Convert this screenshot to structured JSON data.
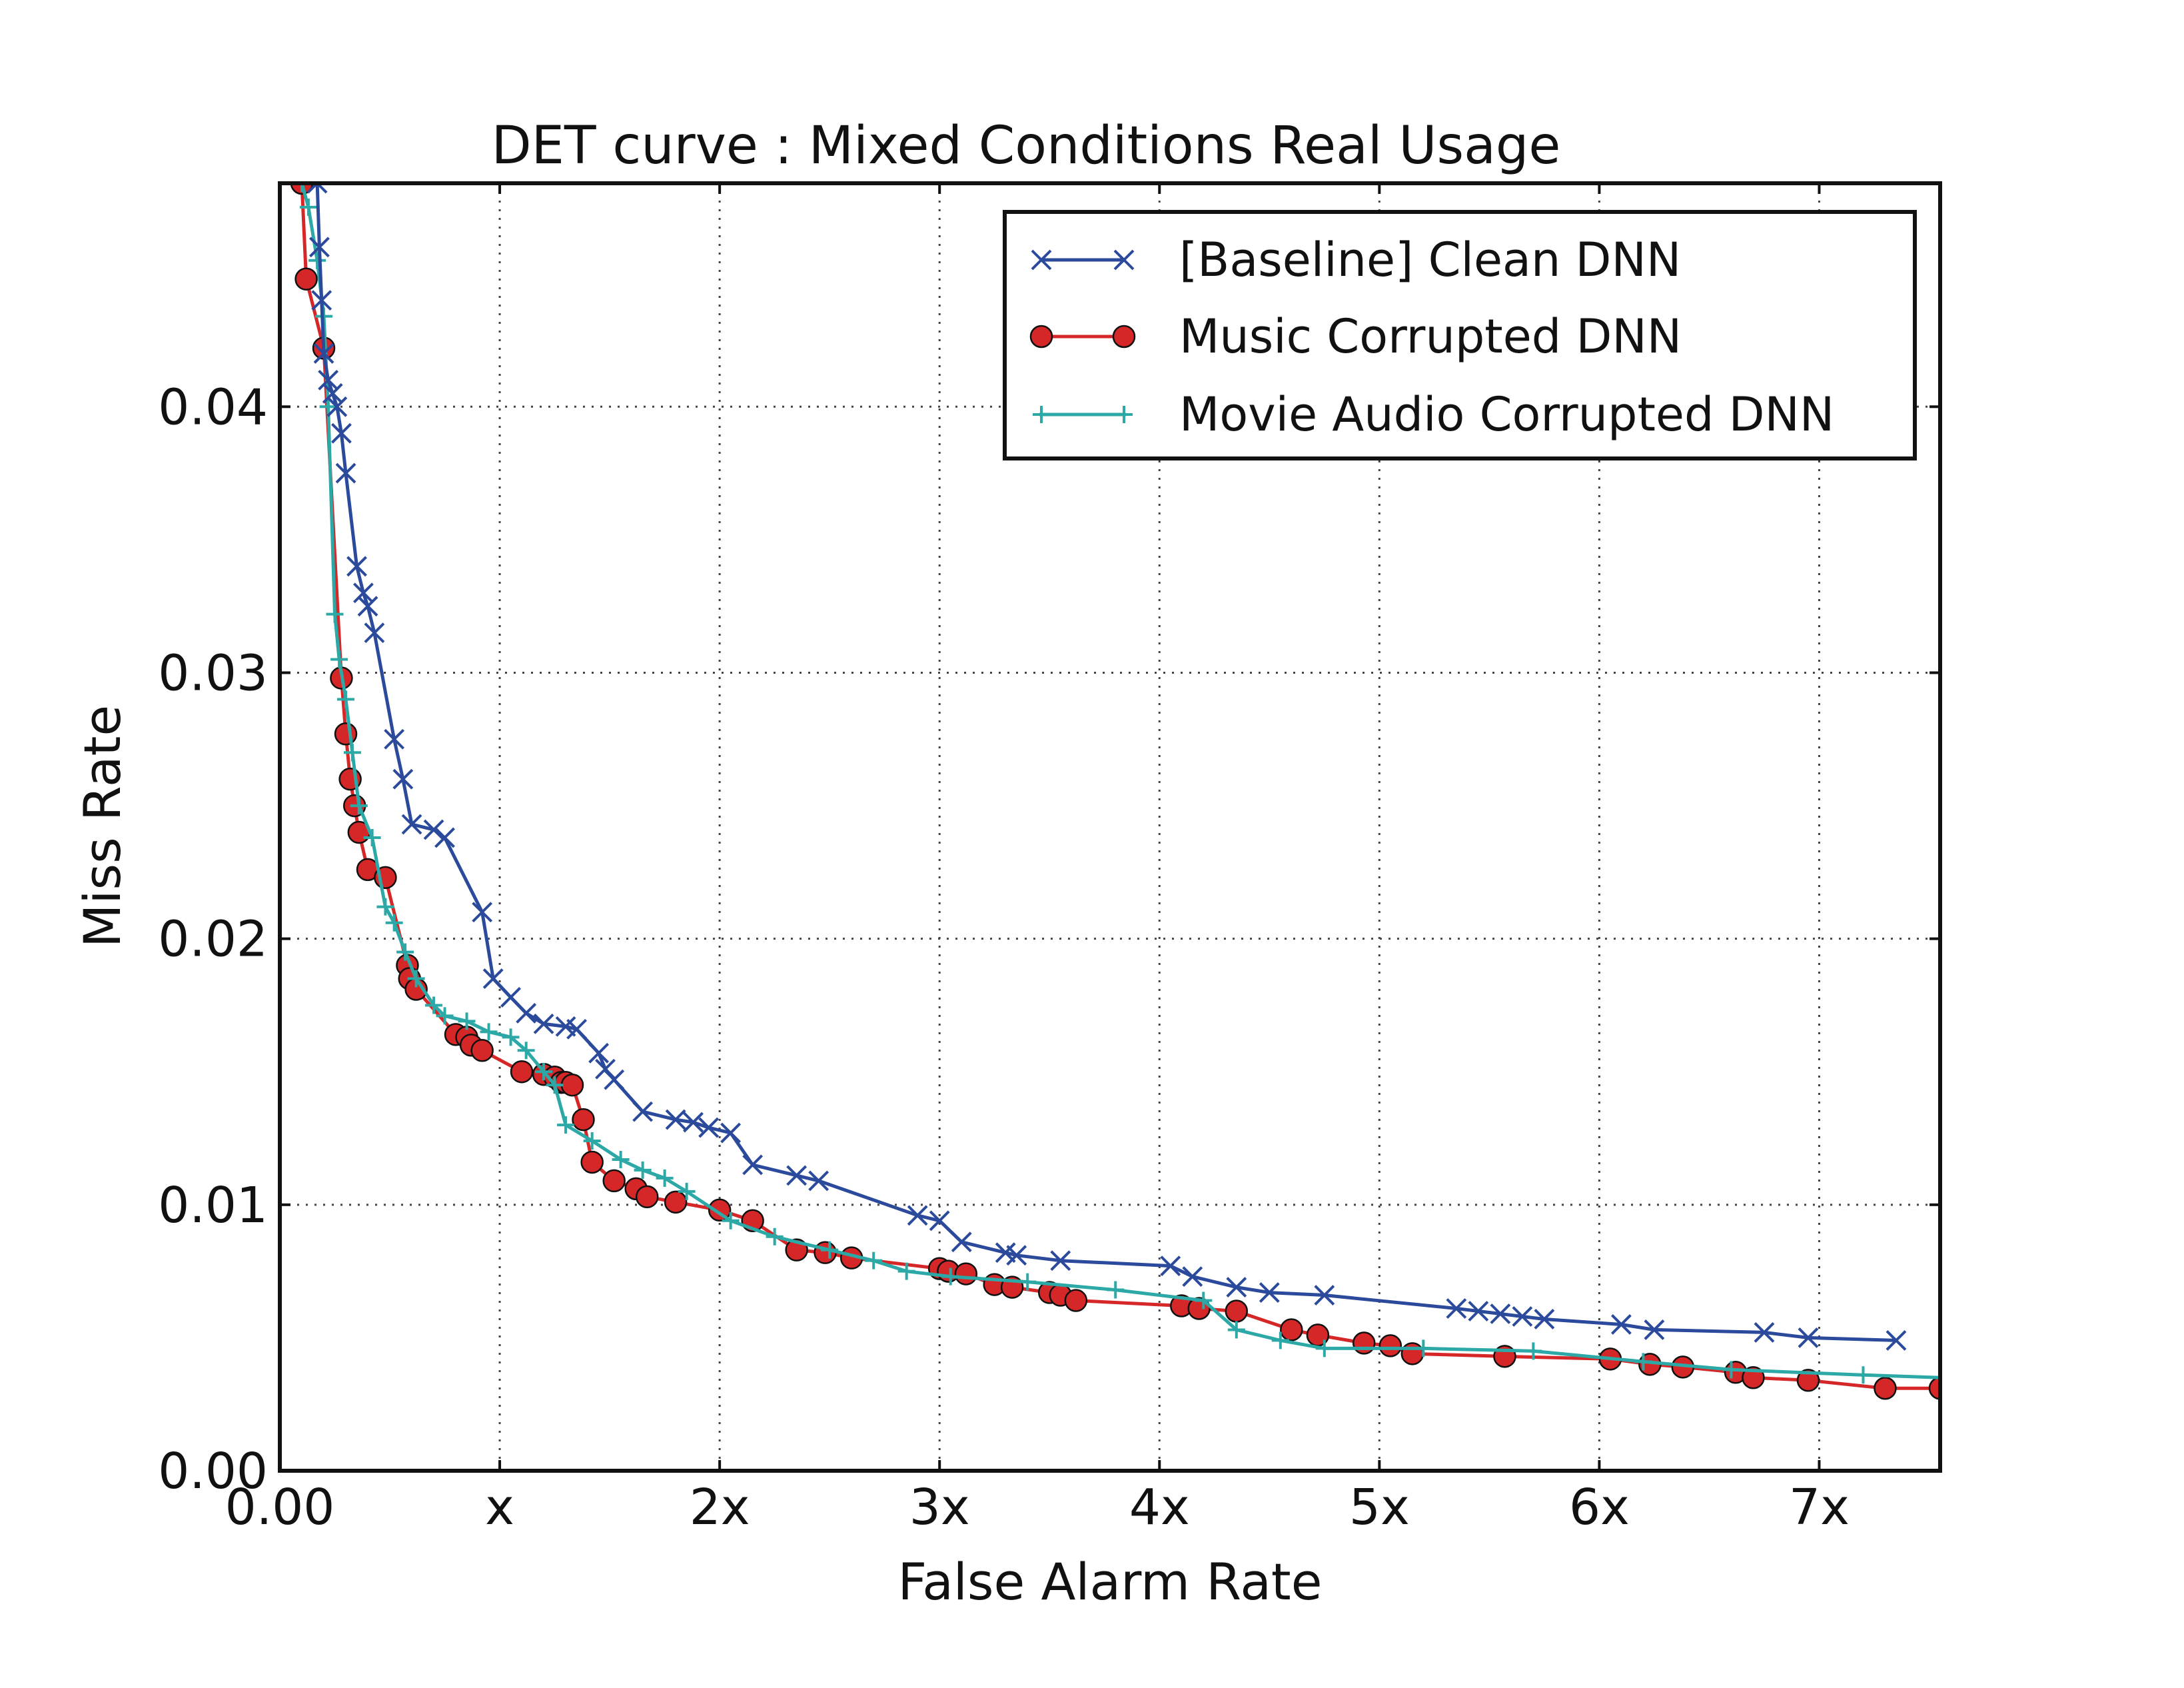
{
  "chart_data": {
    "type": "line",
    "title": "DET curve :  Mixed  Conditions  Real  Usage",
    "xlabel": "False Alarm Rate",
    "ylabel": "Miss Rate",
    "xlim": [
      0,
      7.55
    ],
    "ylim": [
      0,
      0.0484
    ],
    "x_ticks": [
      {
        "value": 0,
        "label": "0.00"
      },
      {
        "value": 1,
        "label": "x"
      },
      {
        "value": 2,
        "label": "2x"
      },
      {
        "value": 3,
        "label": "3x"
      },
      {
        "value": 4,
        "label": "4x"
      },
      {
        "value": 5,
        "label": "5x"
      },
      {
        "value": 6,
        "label": "6x"
      },
      {
        "value": 7,
        "label": "7x"
      }
    ],
    "y_ticks": [
      {
        "value": 0,
        "label": "0.00"
      },
      {
        "value": 0.01,
        "label": "0.01"
      },
      {
        "value": 0.02,
        "label": "0.02"
      },
      {
        "value": 0.03,
        "label": "0.03"
      },
      {
        "value": 0.04,
        "label": "0.04"
      }
    ],
    "grid": true,
    "legend_position": "top-right",
    "series": [
      {
        "name": "[Baseline]  Clean  DNN",
        "color": "#2b4a9c",
        "marker": "x",
        "x": [
          0.17,
          0.18,
          0.19,
          0.2,
          0.22,
          0.24,
          0.26,
          0.28,
          0.3,
          0.35,
          0.38,
          0.4,
          0.43,
          0.52,
          0.56,
          0.6,
          0.7,
          0.75,
          0.92,
          0.97,
          1.05,
          1.12,
          1.2,
          1.3,
          1.35,
          1.45,
          1.48,
          1.52,
          1.65,
          1.8,
          1.88,
          1.95,
          2.05,
          2.15,
          2.35,
          2.45,
          2.9,
          3.0,
          3.1,
          3.3,
          3.35,
          3.55,
          4.05,
          4.15,
          4.35,
          4.5,
          4.75,
          5.35,
          5.45,
          5.55,
          5.65,
          5.75,
          6.1,
          6.25,
          6.75,
          6.95,
          7.35
        ],
        "y": [
          0.0484,
          0.046,
          0.044,
          0.042,
          0.041,
          0.0405,
          0.04,
          0.039,
          0.0375,
          0.034,
          0.033,
          0.0325,
          0.0315,
          0.0275,
          0.026,
          0.0243,
          0.0241,
          0.0238,
          0.021,
          0.0185,
          0.0178,
          0.0172,
          0.0168,
          0.0167,
          0.0166,
          0.0157,
          0.0151,
          0.0147,
          0.0135,
          0.0132,
          0.0131,
          0.0129,
          0.0127,
          0.0115,
          0.0111,
          0.0109,
          0.0096,
          0.0094,
          0.0086,
          0.0082,
          0.0081,
          0.0079,
          0.0077,
          0.0073,
          0.0069,
          0.0067,
          0.0066,
          0.0061,
          0.006,
          0.0059,
          0.0058,
          0.0057,
          0.0055,
          0.0053,
          0.0052,
          0.005,
          0.0049
        ]
      },
      {
        "name": "Music  Corrupted  DNN",
        "color": "#d62728",
        "marker": "o",
        "x": [
          0.1,
          0.12,
          0.2,
          0.28,
          0.3,
          0.32,
          0.34,
          0.36,
          0.4,
          0.48,
          0.58,
          0.59,
          0.62,
          0.8,
          0.85,
          0.87,
          0.92,
          1.1,
          1.2,
          1.25,
          1.28,
          1.3,
          1.33,
          1.38,
          1.42,
          1.52,
          1.62,
          1.67,
          1.8,
          2.0,
          2.15,
          2.35,
          2.48,
          2.6,
          3.0,
          3.04,
          3.12,
          3.25,
          3.33,
          3.5,
          3.55,
          3.62,
          4.1,
          4.18,
          4.35,
          4.6,
          4.72,
          4.93,
          5.05,
          5.15,
          5.57,
          6.05,
          6.23,
          6.38,
          6.62,
          6.7,
          6.95,
          7.3,
          7.55
        ],
        "y": [
          0.0484,
          0.0448,
          0.0422,
          0.0298,
          0.0277,
          0.026,
          0.025,
          0.024,
          0.0226,
          0.0223,
          0.019,
          0.0185,
          0.0181,
          0.0164,
          0.0163,
          0.016,
          0.0158,
          0.015,
          0.0149,
          0.0148,
          0.0146,
          0.0146,
          0.0145,
          0.0132,
          0.0116,
          0.0109,
          0.0106,
          0.0103,
          0.0101,
          0.0098,
          0.0094,
          0.0083,
          0.0082,
          0.008,
          0.0076,
          0.0075,
          0.0074,
          0.007,
          0.0069,
          0.0067,
          0.0066,
          0.0064,
          0.0062,
          0.0061,
          0.006,
          0.0053,
          0.0051,
          0.0048,
          0.0047,
          0.0044,
          0.0043,
          0.0042,
          0.004,
          0.0039,
          0.0037,
          0.0035,
          0.0034,
          0.0031,
          0.0031
        ]
      },
      {
        "name": "Movie Audio Corrupted DNN",
        "color": "#2ca9a6",
        "marker": "+",
        "x": [
          0.1,
          0.13,
          0.17,
          0.2,
          0.22,
          0.25,
          0.27,
          0.3,
          0.33,
          0.36,
          0.42,
          0.48,
          0.52,
          0.57,
          0.62,
          0.7,
          0.75,
          0.85,
          0.95,
          1.05,
          1.12,
          1.2,
          1.25,
          1.3,
          1.42,
          1.55,
          1.65,
          1.75,
          1.85,
          2.05,
          2.25,
          2.5,
          2.7,
          2.85,
          3.05,
          3.4,
          3.8,
          4.2,
          4.35,
          4.55,
          4.75,
          5.2,
          5.7,
          6.2,
          6.6,
          7.2,
          7.55
        ],
        "y": [
          0.0484,
          0.0475,
          0.0455,
          0.0434,
          0.04,
          0.0322,
          0.0305,
          0.029,
          0.027,
          0.025,
          0.0238,
          0.0212,
          0.0206,
          0.0195,
          0.0185,
          0.0175,
          0.0171,
          0.0169,
          0.0165,
          0.0163,
          0.0158,
          0.015,
          0.0145,
          0.013,
          0.0124,
          0.0117,
          0.0113,
          0.011,
          0.0105,
          0.0094,
          0.0088,
          0.0083,
          0.0079,
          0.0075,
          0.0073,
          0.0071,
          0.0068,
          0.0064,
          0.0053,
          0.0049,
          0.0046,
          0.0046,
          0.0045,
          0.0041,
          0.0038,
          0.0036,
          0.0035
        ]
      }
    ]
  }
}
